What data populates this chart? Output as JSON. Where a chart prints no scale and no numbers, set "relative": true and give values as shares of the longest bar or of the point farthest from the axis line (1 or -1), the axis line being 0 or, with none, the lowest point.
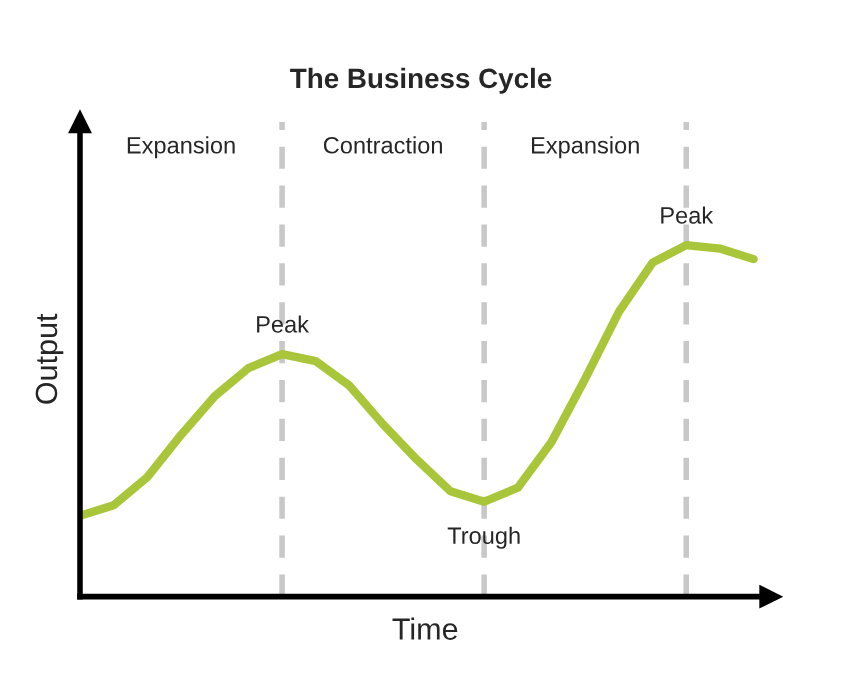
{
  "chart_data": {
    "type": "line",
    "relative": true,
    "title": "The Business Cycle",
    "xlabel": "Time",
    "ylabel": "Output",
    "categories": [
      null,
      null,
      null,
      null,
      null,
      null,
      null,
      null,
      null,
      null,
      null,
      null,
      null,
      null,
      null,
      null,
      null,
      null,
      null,
      null,
      null
    ],
    "series": [
      {
        "color": "#a9c63a",
        "values": [
          0.23,
          0.26,
          0.34,
          0.46,
          0.57,
          0.65,
          0.69,
          0.67,
          0.6,
          0.49,
          0.39,
          0.3,
          0.27,
          0.31,
          0.44,
          0.62,
          0.81,
          0.95,
          1,
          0.99,
          0.96
        ]
      }
    ],
    "annotations": [
      "Expansion",
      "Contraction",
      "Expansion",
      {
        "text": "Peak",
        "y": 0.69
      },
      {
        "text": "Trough",
        "y": 0.27
      },
      {
        "text": "Peak",
        "y": 1
      }
    ],
    "grid": "x",
    "legend": false
  }
}
